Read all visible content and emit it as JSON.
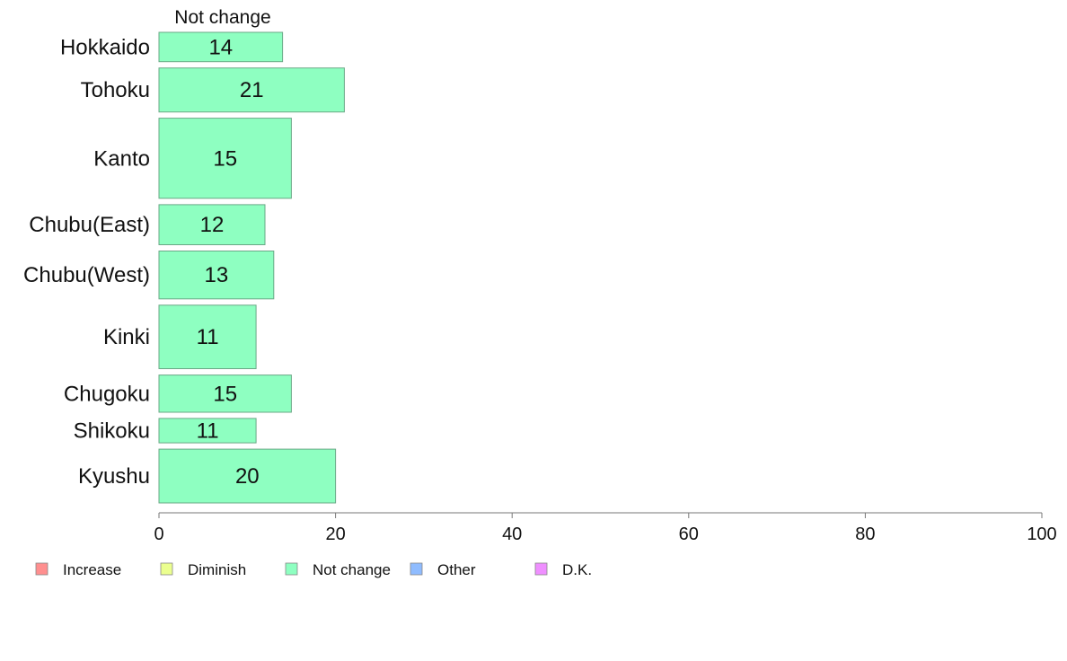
{
  "chart_data": {
    "type": "bar",
    "orientation": "horizontal",
    "stacked": true,
    "panel_label": "Not change",
    "categories": [
      "Hokkaido",
      "Tohoku",
      "Kanto",
      "Chubu(East)",
      "Chubu(West)",
      "Kinki",
      "Chugoku",
      "Shikoku",
      "Kyushu"
    ],
    "weights": [
      3,
      4.5,
      8.2,
      4.1,
      4.9,
      6.5,
      3.8,
      2.5,
      5.5
    ],
    "series": [
      {
        "name": "Not change",
        "values": [
          14,
          21,
          15,
          12,
          13,
          11,
          15,
          11,
          20
        ],
        "color": "#8effc1"
      }
    ],
    "xlim": [
      0,
      100
    ],
    "xticks": [
      0,
      20,
      40,
      60,
      80,
      100
    ],
    "grid": false,
    "legend": {
      "placement": "bottom-left",
      "entries": [
        {
          "label": "Increase",
          "color": "#ff8f8f"
        },
        {
          "label": "Diminish",
          "color": "#ebff8f"
        },
        {
          "label": "Not change",
          "color": "#8effc1"
        },
        {
          "label": "Other",
          "color": "#8fbcff"
        },
        {
          "label": "D.K.",
          "color": "#ef8fff"
        }
      ]
    }
  }
}
